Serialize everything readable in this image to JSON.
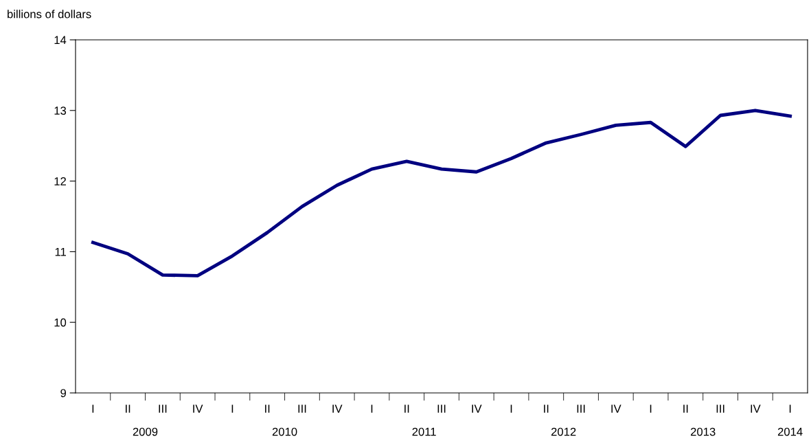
{
  "chart_data": {
    "type": "line",
    "ylabel": "billions of dollars",
    "categories": [
      "I",
      "II",
      "III",
      "IV",
      "I",
      "II",
      "III",
      "IV",
      "I",
      "II",
      "III",
      "IV",
      "I",
      "II",
      "III",
      "IV",
      "I",
      "II",
      "III",
      "IV",
      "I"
    ],
    "series": [
      {
        "color": "#000080",
        "values": [
          11.13,
          10.97,
          10.67,
          10.66,
          10.94,
          11.27,
          11.64,
          11.94,
          12.17,
          12.28,
          12.17,
          12.13,
          12.32,
          12.54,
          12.66,
          12.79,
          12.83,
          12.49,
          12.93,
          13.0,
          12.92
        ]
      }
    ],
    "annotations": [
      "2009",
      "2010",
      "2011",
      "2012",
      "2013",
      "2014"
    ],
    "ylim": [
      9,
      14
    ],
    "yticks": [
      9,
      10,
      11,
      12,
      13,
      14
    ],
    "grid": false,
    "marker": "none",
    "line_style": "solid"
  }
}
